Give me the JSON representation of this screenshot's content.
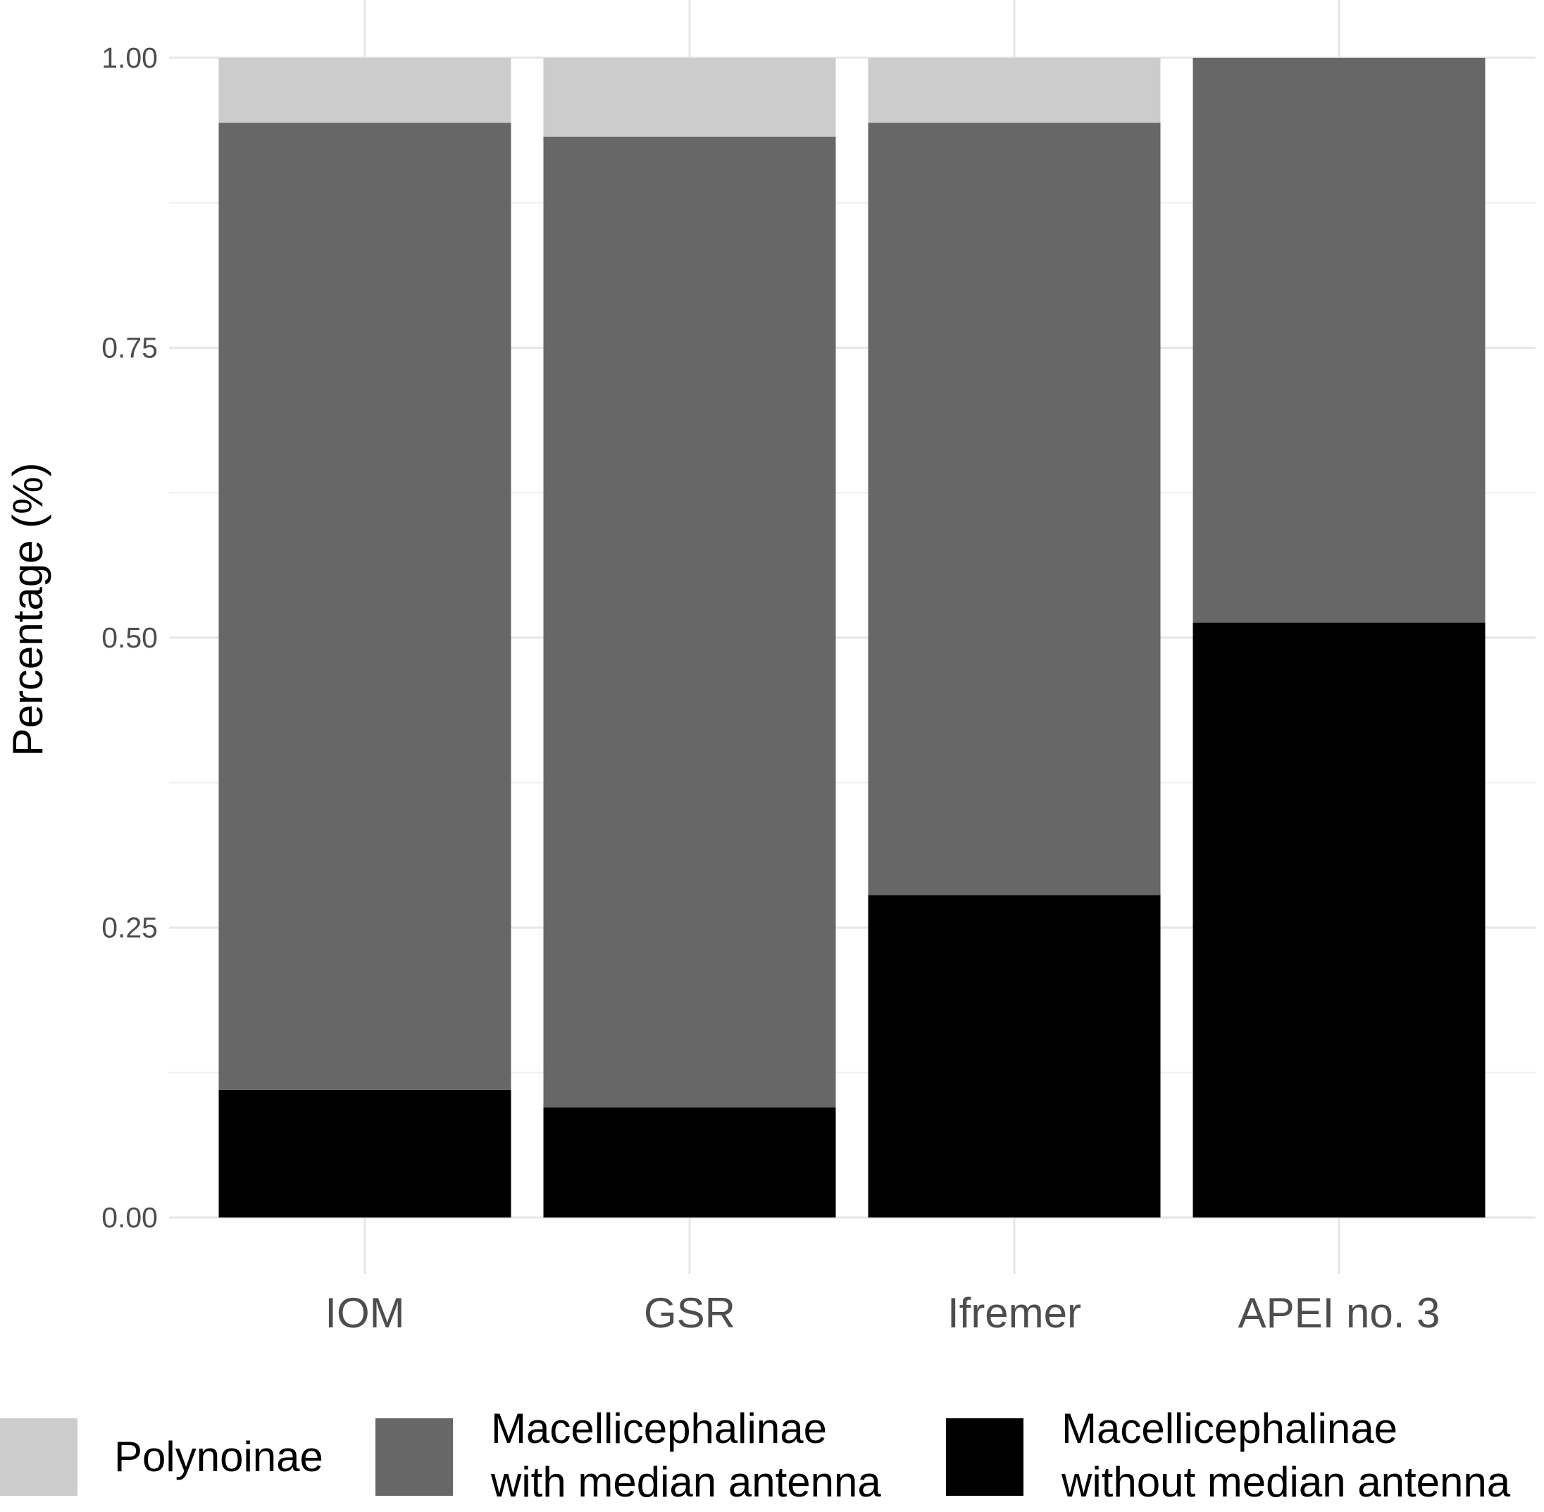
{
  "chart_data": {
    "type": "bar",
    "stacked": true,
    "categories": [
      "IOM",
      "GSR",
      "Ifremer",
      "APEI no. 3"
    ],
    "series": [
      {
        "name": "Macellicephalinae without median antenna",
        "color": "#000000",
        "values": [
          0.11,
          0.095,
          0.278,
          0.513
        ]
      },
      {
        "name": "Macellicephalinae with median antenna",
        "color": "#666766",
        "values": [
          0.834,
          0.837,
          0.666,
          0.487
        ]
      },
      {
        "name": "Polynoinae",
        "color": "#cccccc",
        "values": [
          0.056,
          0.068,
          0.056,
          0.0
        ]
      }
    ],
    "ylabel": "Percentage (%)",
    "xlabel": "",
    "ylim": [
      0,
      1
    ],
    "yticks": [
      "0.00",
      "0.25",
      "0.50",
      "0.75",
      "1.00"
    ],
    "grid": true,
    "legend": {
      "position": "bottom",
      "entries": [
        {
          "lines": [
            "Polynoinae"
          ],
          "color": "#cccccc"
        },
        {
          "lines": [
            "Macellicephalinae",
            "with median antenna"
          ],
          "color": "#666766"
        },
        {
          "lines": [
            "Macellicephalinae",
            "without median antenna"
          ],
          "color": "#000000"
        }
      ]
    }
  }
}
